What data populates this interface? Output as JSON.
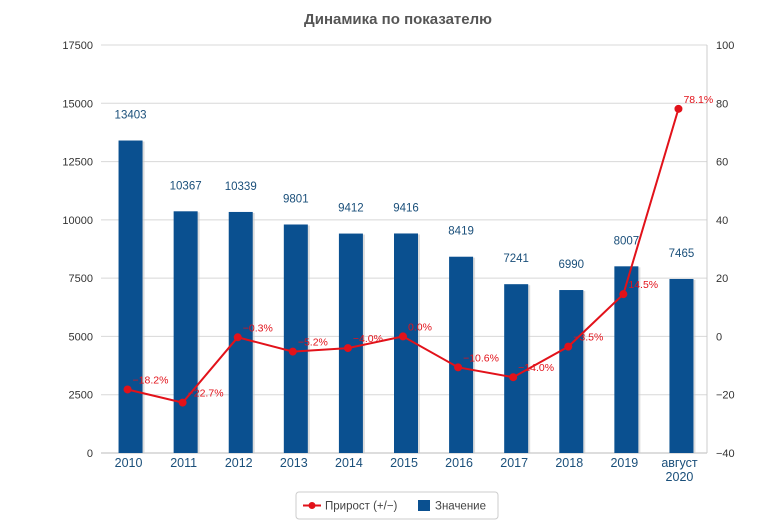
{
  "chart_data": {
    "type": "bar+line",
    "title": "Динамика по показателю",
    "categories": [
      "2010",
      "2011",
      "2012",
      "2013",
      "2014",
      "2015",
      "2016",
      "2017",
      "2018",
      "2019",
      "август 2020"
    ],
    "series": [
      {
        "name": "Значение",
        "type": "bar",
        "axis": "left",
        "color": "#0a5090",
        "values": [
          13403,
          10367,
          10339,
          9801,
          9412,
          9416,
          8419,
          7241,
          6990,
          8007,
          7465
        ],
        "labels": [
          "13403",
          "10367",
          "10339",
          "9801",
          "9412",
          "9416",
          "8419",
          "7241",
          "6990",
          "8007",
          "7465"
        ]
      },
      {
        "name": "Прирост (+/−)",
        "type": "line",
        "axis": "right",
        "color": "#e2121a",
        "values": [
          -18.2,
          -22.7,
          -0.3,
          -5.2,
          -4.0,
          0.0,
          -10.6,
          -14.0,
          -3.5,
          14.5,
          78.1
        ],
        "labels": [
          "−18.2%",
          "−22.7%",
          "−0.3%",
          "−5.2%",
          "−4.0%",
          "0.0%",
          "−10.6%",
          "−14.0%",
          "−3.5%",
          "14.5%",
          "78.1%"
        ]
      }
    ],
    "y_left": {
      "min": 0,
      "max": 17500,
      "ticks": [
        "0",
        "2500",
        "5000",
        "7500",
        "10000",
        "12500",
        "15000",
        "17500"
      ]
    },
    "y_right": {
      "min": -40,
      "max": 100,
      "ticks": [
        "−40",
        "−20",
        "0",
        "20",
        "40",
        "60",
        "80",
        "100"
      ]
    },
    "grid": true,
    "legend_position": "bottom-center"
  }
}
